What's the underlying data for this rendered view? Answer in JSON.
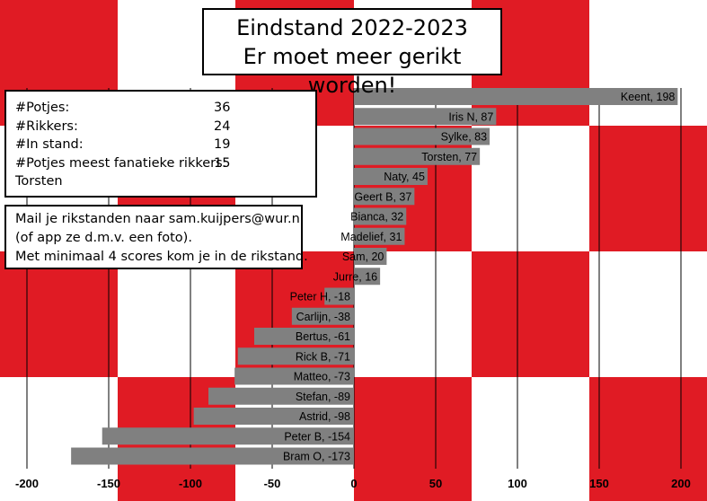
{
  "title": {
    "line1": "Eindstand 2022-2023",
    "line2": "Er moet meer gerikt worden!"
  },
  "stats": [
    {
      "label": "#Potjes:",
      "value": "36"
    },
    {
      "label": "#Rikkers:",
      "value": "24"
    },
    {
      "label": "#In stand:",
      "value": "19"
    },
    {
      "label": "#Potjes meest fanatieke rikkers:",
      "value": "15"
    },
    {
      "label": "Torsten",
      "value": ""
    }
  ],
  "mail": {
    "line1": "Mail je rikstanden naar sam.kuijpers@wur.nl",
    "line2": "(of app ze d.m.v. een foto).",
    "line3": "Met minimaal 4 scores kom je in de rikstand."
  },
  "colors": {
    "bar": "#808080",
    "checker_red": "#e01b24",
    "checker_white": "#ffffff",
    "gridline": "#000000"
  },
  "chart_data": {
    "type": "bar",
    "orientation": "horizontal",
    "categories": [
      "Keent",
      "Iris N",
      "Sylke",
      "Torsten",
      "Naty",
      "Geert B",
      "Bianca",
      "Madelief",
      "Sam",
      "Jurre",
      "Peter H",
      "Carlijn",
      "Bertus",
      "Rick B",
      "Matteo",
      "Stefan",
      "Astrid",
      "Peter B",
      "Bram O"
    ],
    "values": [
      198,
      87,
      83,
      77,
      45,
      37,
      32,
      31,
      20,
      16,
      -18,
      -38,
      -61,
      -71,
      -73,
      -89,
      -98,
      -154,
      -173
    ],
    "data_labels": [
      "Keent, 198",
      "Iris N, 87",
      "Sylke, 83",
      "Torsten, 77",
      "Naty, 45",
      "Geert B, 37",
      "Bianca, 32",
      "Madelief, 31",
      "Sam, 20",
      "Jurre, 16",
      "Peter H, -18",
      "Carlijn, -38",
      "Bertus, -61",
      "Rick B, -71",
      "Matteo, -73",
      "Stefan, -89",
      "Astrid, -98",
      "Peter B, -154",
      "Bram O, -173"
    ],
    "xlim": [
      -200,
      200
    ],
    "xticks": [
      -200,
      -150,
      -100,
      -50,
      0,
      50,
      100,
      150,
      200
    ],
    "xtick_labels": [
      "-200",
      "-150",
      "-100",
      "-50",
      "0",
      "50",
      "100",
      "150",
      "200"
    ],
    "grid": "vertical",
    "legend": "none"
  }
}
